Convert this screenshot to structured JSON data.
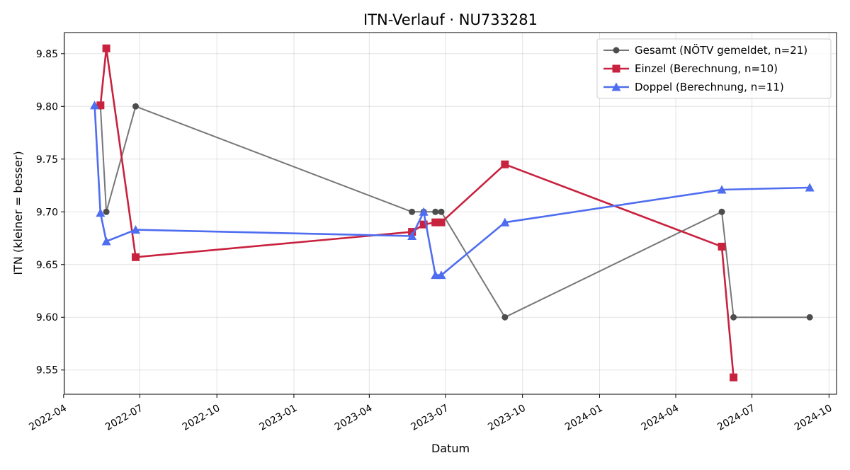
{
  "chart_data": {
    "type": "line",
    "title": "ITN-Verlauf · NU733281",
    "xlabel": "Datum",
    "ylabel": "ITN  (kleiner = besser)",
    "xlim": [
      "2022-04-02",
      "2024-10-10"
    ],
    "ylim": [
      9.527,
      9.87
    ],
    "grid": true,
    "legend_position": "top-right",
    "x_ticks": [
      "2022-04",
      "2022-07",
      "2022-10",
      "2023-01",
      "2023-04",
      "2023-07",
      "2023-10",
      "2024-01",
      "2024-04",
      "2024-07",
      "2024-10"
    ],
    "y_ticks": [
      "9.55",
      "9.60",
      "9.65",
      "9.70",
      "9.75",
      "9.80",
      "9.85"
    ],
    "series": [
      {
        "name": "Gesamt (NÖTV gemeldet, n=21)",
        "color": "#777777",
        "marker_color": "#4d4d4d",
        "marker": "circle",
        "points": [
          {
            "x": "2022-05-15",
            "y": 9.8
          },
          {
            "x": "2022-05-22",
            "y": 9.7
          },
          {
            "x": "2022-06-26",
            "y": 9.8
          },
          {
            "x": "2023-05-22",
            "y": 9.7
          },
          {
            "x": "2023-06-05",
            "y": 9.7
          },
          {
            "x": "2023-06-19",
            "y": 9.7
          },
          {
            "x": "2023-06-26",
            "y": 9.7
          },
          {
            "x": "2023-09-10",
            "y": 9.6
          },
          {
            "x": "2024-05-26",
            "y": 9.7
          },
          {
            "x": "2024-06-09",
            "y": 9.6
          },
          {
            "x": "2024-09-08",
            "y": 9.6
          }
        ]
      },
      {
        "name": "Einzel (Berechnung, n=10)",
        "color": "#c8223f",
        "marker": "square",
        "points": [
          {
            "x": "2022-05-15",
            "y": 9.801
          },
          {
            "x": "2022-05-22",
            "y": 9.855
          },
          {
            "x": "2022-06-26",
            "y": 9.657
          },
          {
            "x": "2023-05-22",
            "y": 9.681
          },
          {
            "x": "2023-06-05",
            "y": 9.688
          },
          {
            "x": "2023-06-19",
            "y": 9.69
          },
          {
            "x": "2023-06-26",
            "y": 9.69
          },
          {
            "x": "2023-09-10",
            "y": 9.745
          },
          {
            "x": "2024-05-26",
            "y": 9.667
          },
          {
            "x": "2024-06-09",
            "y": 9.543
          }
        ]
      },
      {
        "name": "Doppel (Berechnung, n=11)",
        "color": "#4f6df0",
        "marker": "triangle",
        "points": [
          {
            "x": "2022-05-08",
            "y": 9.801
          },
          {
            "x": "2022-05-15",
            "y": 9.699
          },
          {
            "x": "2022-05-22",
            "y": 9.672
          },
          {
            "x": "2022-06-26",
            "y": 9.683
          },
          {
            "x": "2023-05-22",
            "y": 9.677
          },
          {
            "x": "2023-06-05",
            "y": 9.7
          },
          {
            "x": "2023-06-19",
            "y": 9.64
          },
          {
            "x": "2023-06-26",
            "y": 9.64
          },
          {
            "x": "2023-09-10",
            "y": 9.69
          },
          {
            "x": "2024-05-26",
            "y": 9.721
          },
          {
            "x": "2024-09-08",
            "y": 9.723
          }
        ]
      }
    ]
  }
}
